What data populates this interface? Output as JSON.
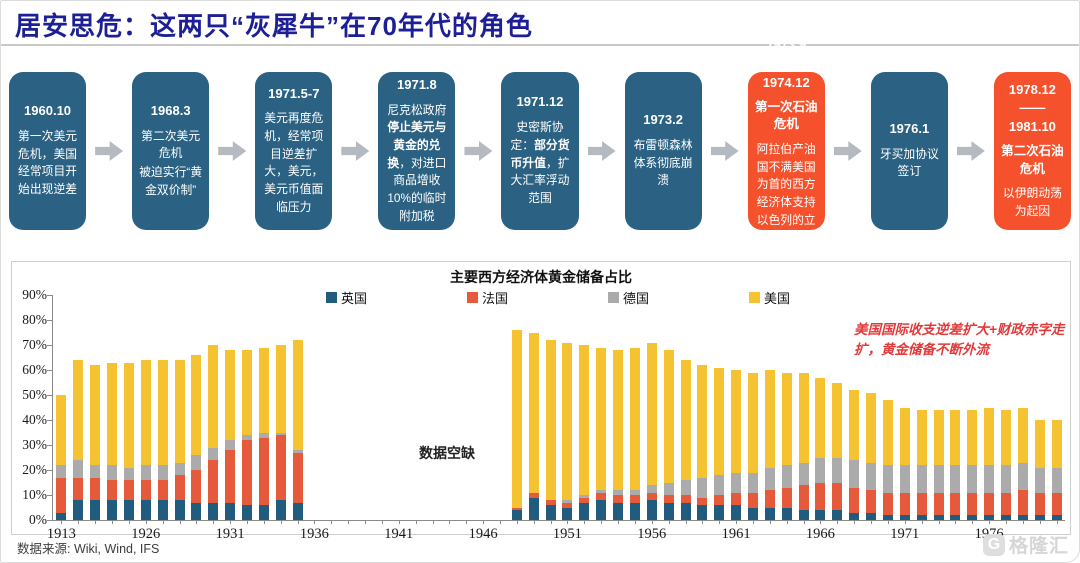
{
  "header": {
    "title": "居安思危：这两只“灰犀牛”在70年代的角色"
  },
  "timeline": {
    "boxes": [
      {
        "color": "blue",
        "date": "1960.10",
        "body": [
          [
            {
              "t": "第一次美元危机，美国经常项目开始出现逆差",
              "b": 0
            }
          ]
        ]
      },
      {
        "color": "blue",
        "date": "1968.3",
        "body": [
          [
            {
              "t": "第二次美元危机",
              "b": 0
            }
          ],
          [
            {
              "t": "被迫实行“黄金双价制”",
              "b": 0
            }
          ]
        ]
      },
      {
        "color": "blue",
        "date": "1971.5-7",
        "body": [
          [
            {
              "t": "美元再度危机，经常项目逆差扩大，美元，美元币值面临压力",
              "b": 0
            }
          ]
        ]
      },
      {
        "color": "blue",
        "date": "1971.8",
        "body": [
          [
            {
              "t": "尼克松政府",
              "b": 0
            },
            {
              "t": "停止美元与黄金的兑换",
              "b": 1
            },
            {
              "t": "，对进口商品增收10%的临时附加税",
              "b": 0
            }
          ]
        ]
      },
      {
        "color": "blue",
        "date": "1971.12",
        "body": [
          [
            {
              "t": "史密斯协定：",
              "b": 0
            },
            {
              "t": "部分货币升值",
              "b": 1
            },
            {
              "t": "，扩大汇率浮动范围",
              "b": 0
            }
          ]
        ]
      },
      {
        "color": "blue",
        "date": "1973.2",
        "body": [
          [
            {
              "t": "布雷顿森林体系彻底崩溃",
              "b": 0
            }
          ]
        ]
      },
      {
        "color": "orange",
        "date": "1973.9——",
        "date2": "1974.12",
        "title": "第一次石油危机",
        "body": [
          [
            {
              "t": "阿拉伯产油国不满美国为首的西方经济体支持以色列的立场，宣布“石油禁运”",
              "b": 0
            }
          ]
        ]
      },
      {
        "color": "blue",
        "date": "1976.1",
        "body": [
          [
            {
              "t": "牙买加协议签订",
              "b": 0
            }
          ]
        ]
      },
      {
        "color": "orange",
        "date": "1978.12——",
        "date2": "1981.10",
        "title": "第二次石油危机",
        "body": [
          [
            {
              "t": "以伊朗动荡为起因",
              "b": 0
            }
          ]
        ]
      }
    ]
  },
  "chart_data": {
    "type": "bar",
    "stacked": true,
    "title": "主要西方经济体黄金储备占比",
    "series_names": [
      "英国",
      "法国",
      "德国",
      "美国"
    ],
    "series_colors": [
      "#1f5c7e",
      "#e65a3c",
      "#ababab",
      "#f5c332"
    ],
    "ylim": [
      0,
      90
    ],
    "ytick_step": 10,
    "ytick_suffix": "%",
    "xtick_years": [
      1913,
      1926,
      1931,
      1936,
      1941,
      1946,
      1951,
      1956,
      1961,
      1966,
      1971,
      1976
    ],
    "slot_years": {
      "first_year": 1913,
      "annual_start": 1922,
      "annual_end": 1980
    },
    "gap_label": "数据空缺",
    "annotation": "美国国际收支逆差扩大+财政赤字走扩，黄金储备不断外流",
    "legend_position": "top",
    "grid": false,
    "bars": [
      {
        "year": 1913,
        "values": [
          3,
          14,
          5,
          28
        ]
      },
      {
        "year": 1922,
        "values": [
          8,
          9,
          7,
          40
        ]
      },
      {
        "year": 1923,
        "values": [
          8,
          9,
          5,
          40
        ]
      },
      {
        "year": 1924,
        "values": [
          8,
          8,
          6,
          41
        ]
      },
      {
        "year": 1925,
        "values": [
          8,
          8,
          5,
          42
        ]
      },
      {
        "year": 1926,
        "values": [
          8,
          8,
          6,
          42
        ]
      },
      {
        "year": 1927,
        "values": [
          8,
          8,
          6,
          42
        ]
      },
      {
        "year": 1928,
        "values": [
          8,
          10,
          5,
          41
        ]
      },
      {
        "year": 1929,
        "values": [
          7,
          13,
          6,
          40
        ]
      },
      {
        "year": 1930,
        "values": [
          7,
          17,
          5,
          41
        ]
      },
      {
        "year": 1931,
        "values": [
          7,
          21,
          4,
          36
        ]
      },
      {
        "year": 1932,
        "values": [
          6,
          26,
          2,
          34
        ]
      },
      {
        "year": 1933,
        "values": [
          6,
          27,
          2,
          34
        ]
      },
      {
        "year": 1934,
        "values": [
          8,
          26,
          1,
          35
        ]
      },
      {
        "year": 1935,
        "values": [
          7,
          20,
          1,
          44
        ]
      },
      {
        "year": 1948,
        "values": [
          4,
          1,
          0,
          71
        ]
      },
      {
        "year": 1949,
        "values": [
          9,
          2,
          0,
          64
        ]
      },
      {
        "year": 1950,
        "values": [
          6,
          2,
          0,
          64
        ]
      },
      {
        "year": 1951,
        "values": [
          5,
          2,
          1,
          63
        ]
      },
      {
        "year": 1952,
        "values": [
          7,
          2,
          1,
          60
        ]
      },
      {
        "year": 1953,
        "values": [
          8,
          3,
          1,
          57
        ]
      },
      {
        "year": 1954,
        "values": [
          7,
          3,
          2,
          56
        ]
      },
      {
        "year": 1955,
        "values": [
          7,
          3,
          2,
          57
        ]
      },
      {
        "year": 1956,
        "values": [
          8,
          3,
          3,
          57
        ]
      },
      {
        "year": 1957,
        "values": [
          7,
          3,
          5,
          53
        ]
      },
      {
        "year": 1958,
        "values": [
          7,
          3,
          6,
          48
        ]
      },
      {
        "year": 1959,
        "values": [
          6,
          3,
          8,
          45
        ]
      },
      {
        "year": 1960,
        "values": [
          6,
          4,
          8,
          43
        ]
      },
      {
        "year": 1961,
        "values": [
          6,
          5,
          8,
          41
        ]
      },
      {
        "year": 1962,
        "values": [
          5,
          6,
          8,
          40
        ]
      },
      {
        "year": 1963,
        "values": [
          5,
          7,
          9,
          39
        ]
      },
      {
        "year": 1964,
        "values": [
          5,
          8,
          9,
          37
        ]
      },
      {
        "year": 1965,
        "values": [
          4,
          10,
          9,
          36
        ]
      },
      {
        "year": 1966,
        "values": [
          4,
          11,
          10,
          32
        ]
      },
      {
        "year": 1967,
        "values": [
          4,
          11,
          10,
          30
        ]
      },
      {
        "year": 1968,
        "values": [
          3,
          10,
          11,
          28
        ]
      },
      {
        "year": 1969,
        "values": [
          3,
          9,
          11,
          28
        ]
      },
      {
        "year": 1970,
        "values": [
          2,
          9,
          11,
          26
        ]
      },
      {
        "year": 1971,
        "values": [
          2,
          9,
          11,
          23
        ]
      },
      {
        "year": 1972,
        "values": [
          2,
          9,
          11,
          22
        ]
      },
      {
        "year": 1973,
        "values": [
          2,
          9,
          11,
          22
        ]
      },
      {
        "year": 1974,
        "values": [
          2,
          9,
          11,
          22
        ]
      },
      {
        "year": 1975,
        "values": [
          2,
          9,
          11,
          22
        ]
      },
      {
        "year": 1976,
        "values": [
          2,
          9,
          11,
          23
        ]
      },
      {
        "year": 1977,
        "values": [
          2,
          9,
          11,
          22
        ]
      },
      {
        "year": 1978,
        "values": [
          2,
          10,
          11,
          22
        ]
      },
      {
        "year": 1979,
        "values": [
          2,
          9,
          10,
          19
        ]
      },
      {
        "year": 1980,
        "values": [
          2,
          9,
          10,
          19
        ]
      }
    ]
  },
  "footer": {
    "source": "数据来源: Wiki, Wind, IFS"
  },
  "watermark": {
    "letter": "G",
    "text": "格隆汇"
  }
}
